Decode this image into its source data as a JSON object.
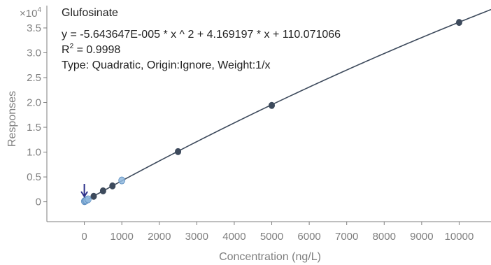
{
  "chart_data": {
    "type": "scatter",
    "title": "Glufosinate",
    "equation": "y = -5.643647E-005 * x ^ 2  + 4.169197 * x  + 110.071066",
    "r2_prefix": "R",
    "r2_superscript": "2",
    "r2_value": " = 0.9998",
    "fit_info": "Type: Quadratic, Origin:Ignore, Weight:1/x",
    "xlabel": "Concentration (ng/L)",
    "ylabel": "Responses",
    "y_multiplier_base": "×10",
    "y_multiplier_exp": "4",
    "x_ticks": [
      0,
      1000,
      2000,
      3000,
      4000,
      5000,
      6000,
      7000,
      8000,
      9000,
      10000
    ],
    "x_tick_labels": [
      "0",
      "1000",
      "2000",
      "3000",
      "4000",
      "5000",
      "6000",
      "7000",
      "8000",
      "9000",
      "10000"
    ],
    "y_ticks": [
      0,
      0.5,
      1.0,
      1.5,
      2.0,
      2.5,
      3.0,
      3.5
    ],
    "y_tick_labels": [
      "0",
      "0.5",
      "1.0",
      "1.5",
      "2.0",
      "2.5",
      "3.0",
      "3.5"
    ],
    "xlim": [
      -1000,
      10850
    ],
    "ylim": [
      -0.4,
      3.95
    ],
    "fit": {
      "a": -5.643647e-05,
      "b": 4.169197,
      "c": 110.071066
    },
    "calibration_points": [
      {
        "x": 250,
        "y": 0.11
      },
      {
        "x": 500,
        "y": 0.22
      },
      {
        "x": 750,
        "y": 0.32
      },
      {
        "x": 2500,
        "y": 1.01
      },
      {
        "x": 5000,
        "y": 1.94
      },
      {
        "x": 10000,
        "y": 3.61
      }
    ],
    "qc_points": [
      {
        "x": 5,
        "y": 0.01
      },
      {
        "x": 25,
        "y": 0.02
      },
      {
        "x": 50,
        "y": 0.03
      },
      {
        "x": 100,
        "y": 0.05
      },
      {
        "x": 1000,
        "y": 0.43
      }
    ],
    "arrow_at_x": 0,
    "colors": {
      "axis": "#7f7f7f",
      "fit_line": "#3d4a5c",
      "calibration_point": "#3d4a5c",
      "qc_point": "#8fb8de",
      "arrow": "#2b2f8a",
      "text": "#222222"
    }
  }
}
